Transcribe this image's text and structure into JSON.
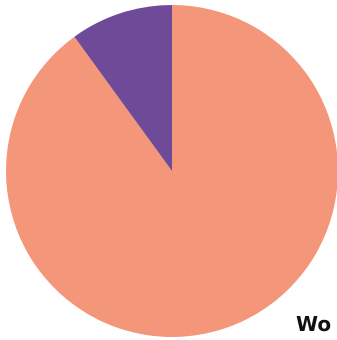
{
  "chart_data": {
    "type": "pie",
    "title": "",
    "slices": [
      {
        "label": "",
        "value": 90,
        "color": "#f4967a"
      },
      {
        "label": "",
        "value": 10,
        "color": "#6e4a99"
      }
    ],
    "start_angle_deg": 0,
    "direction": "counterclockwise_from_second"
  },
  "annotations": {
    "bottom_text": "Wo"
  }
}
